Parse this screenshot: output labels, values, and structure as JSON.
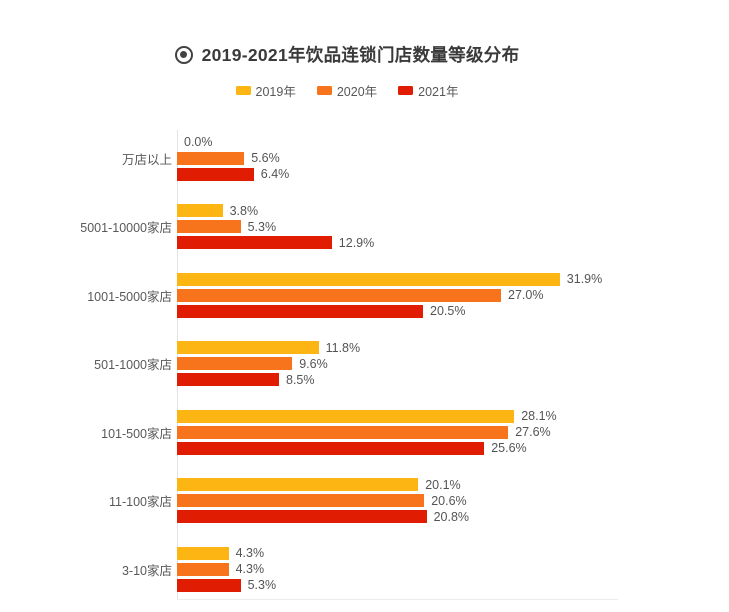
{
  "header": {
    "title": "2019-2021年饮品连锁门店数量等级分布",
    "icon": "target-circle-icon",
    "title_color": "#3a3a3a"
  },
  "legend": {
    "position": "top",
    "items": [
      {
        "label": "2019年",
        "color": "#fcb513"
      },
      {
        "label": "2020年",
        "color": "#f7741d"
      },
      {
        "label": "2021年",
        "color": "#e01c02"
      }
    ]
  },
  "chart_data": {
    "type": "bar",
    "orientation": "horizontal",
    "title": "2019-2021年饮品连锁门店数量等级分布",
    "categories": [
      "万店以上",
      "5001-10000家店",
      "1001-5000家店",
      "501-1000家店",
      "101-500家店",
      "11-100家店",
      "3-10家店"
    ],
    "series": [
      {
        "name": "2019年",
        "color": "#fcb513",
        "values": [
          0.0,
          3.8,
          31.9,
          11.8,
          28.1,
          20.1,
          4.3
        ]
      },
      {
        "name": "2020年",
        "color": "#f7741d",
        "values": [
          5.6,
          5.3,
          27.0,
          9.6,
          27.6,
          20.6,
          4.3
        ]
      },
      {
        "name": "2021年",
        "color": "#e01c02",
        "values": [
          6.4,
          12.9,
          20.5,
          8.5,
          25.6,
          20.8,
          5.3
        ]
      }
    ],
    "value_suffix": "%",
    "value_decimals": 1,
    "xlim": [
      0,
      36.75
    ],
    "grid": "off",
    "axis_color": "#e3e3e3",
    "label_color": "#595959",
    "legend_position": "top"
  }
}
